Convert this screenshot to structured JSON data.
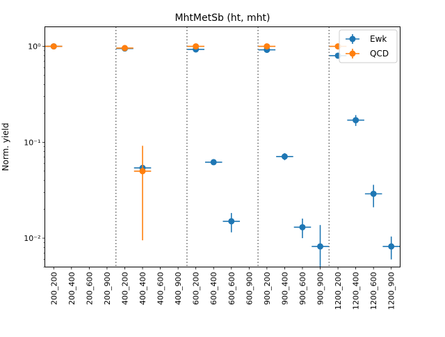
{
  "chart_data": {
    "type": "scatter",
    "title": "MhtMetSb (ht, mht)",
    "xlabel": "",
    "ylabel": "Norm. yield",
    "yscale": "log",
    "ylim": [
      0.005,
      1.6
    ],
    "grid": false,
    "legend_position": "top-right",
    "categories": [
      "200_200",
      "200_400",
      "200_600",
      "200_900",
      "400_200",
      "400_400",
      "400_600",
      "400_900",
      "600_200",
      "600_400",
      "600_600",
      "600_900",
      "900_200",
      "900_400",
      "900_600",
      "900_900",
      "1200_200",
      "1200_400",
      "1200_600",
      "1200_900"
    ],
    "yticks": [
      {
        "value": 1.0,
        "label": "10⁰"
      },
      {
        "value": 0.1,
        "label": "10⁻¹"
      },
      {
        "value": 0.01,
        "label": "10⁻²"
      }
    ],
    "separators": [
      3.5,
      7.5,
      11.5,
      15.5
    ],
    "series": [
      {
        "name": "Ewk",
        "color": "#1f77b4",
        "points": [
          {
            "x": 0,
            "y": 1.0,
            "err_lo": 0.0,
            "err_hi": 0.0
          },
          {
            "x": 4,
            "y": 0.95,
            "err_lo": 0.0,
            "err_hi": 0.0
          },
          {
            "x": 5,
            "y": 0.054,
            "err_lo": 0.0,
            "err_hi": 0.0
          },
          {
            "x": 8,
            "y": 0.93,
            "err_lo": 0.0,
            "err_hi": 0.0
          },
          {
            "x": 9,
            "y": 0.062,
            "err_lo": 0.0,
            "err_hi": 0.0
          },
          {
            "x": 10,
            "y": 0.015,
            "err_lo": 0.0035,
            "err_hi": 0.0033
          },
          {
            "x": 12,
            "y": 0.92,
            "err_lo": 0.0,
            "err_hi": 0.0
          },
          {
            "x": 13,
            "y": 0.071,
            "err_lo": 0.006,
            "err_hi": 0.006
          },
          {
            "x": 14,
            "y": 0.013,
            "err_lo": 0.003,
            "err_hi": 0.003
          },
          {
            "x": 15,
            "y": 0.0082,
            "err_lo": 0.0042,
            "err_hi": 0.0055
          },
          {
            "x": 16,
            "y": 0.8,
            "err_lo": 0.0,
            "err_hi": 0.0
          },
          {
            "x": 17,
            "y": 0.17,
            "err_lo": 0.022,
            "err_hi": 0.022
          },
          {
            "x": 18,
            "y": 0.029,
            "err_lo": 0.008,
            "err_hi": 0.007
          },
          {
            "x": 19,
            "y": 0.0082,
            "err_lo": 0.0022,
            "err_hi": 0.0022
          }
        ]
      },
      {
        "name": "QCD",
        "color": "#ff7f0e",
        "points": [
          {
            "x": 0,
            "y": 1.0,
            "err_lo": 0.0,
            "err_hi": 0.0
          },
          {
            "x": 4,
            "y": 0.96,
            "err_lo": 0.0,
            "err_hi": 0.0
          },
          {
            "x": 5,
            "y": 0.05,
            "err_lo": 0.0405,
            "err_hi": 0.042
          },
          {
            "x": 8,
            "y": 1.0,
            "err_lo": 0.0,
            "err_hi": 0.0
          },
          {
            "x": 12,
            "y": 1.0,
            "err_lo": 0.0,
            "err_hi": 0.0
          },
          {
            "x": 16,
            "y": 1.0,
            "err_lo": 0.0,
            "err_hi": 0.0
          }
        ]
      }
    ]
  }
}
